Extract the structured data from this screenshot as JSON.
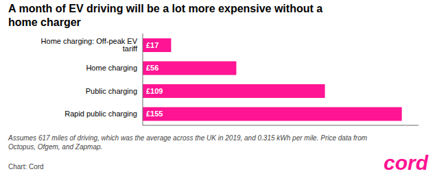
{
  "chart_data": {
    "type": "bar",
    "title": "A month of EV driving will be a lot more expensive without a\nhome charger",
    "categories": [
      "Home charging: Off-peak EV tariff",
      "Home charging",
      "Public charging",
      "Rapid public charging"
    ],
    "values": [
      17,
      56,
      109,
      155
    ],
    "value_labels": [
      "£17",
      "£56",
      "£109",
      "£155"
    ],
    "data_labels": true,
    "orientation": "horizontal",
    "color": "#FF1493",
    "xlim": [
      0,
      165
    ],
    "tick_labels": "y",
    "grid": false,
    "annotations": [
      "Assumes 617 miles of driving, which was the average across the UK in 2019, and 0.315 kWh per mile. Price data from\nOctopus, Ofgem, and Zapmap.",
      "Chart: Cord",
      "cord"
    ]
  }
}
